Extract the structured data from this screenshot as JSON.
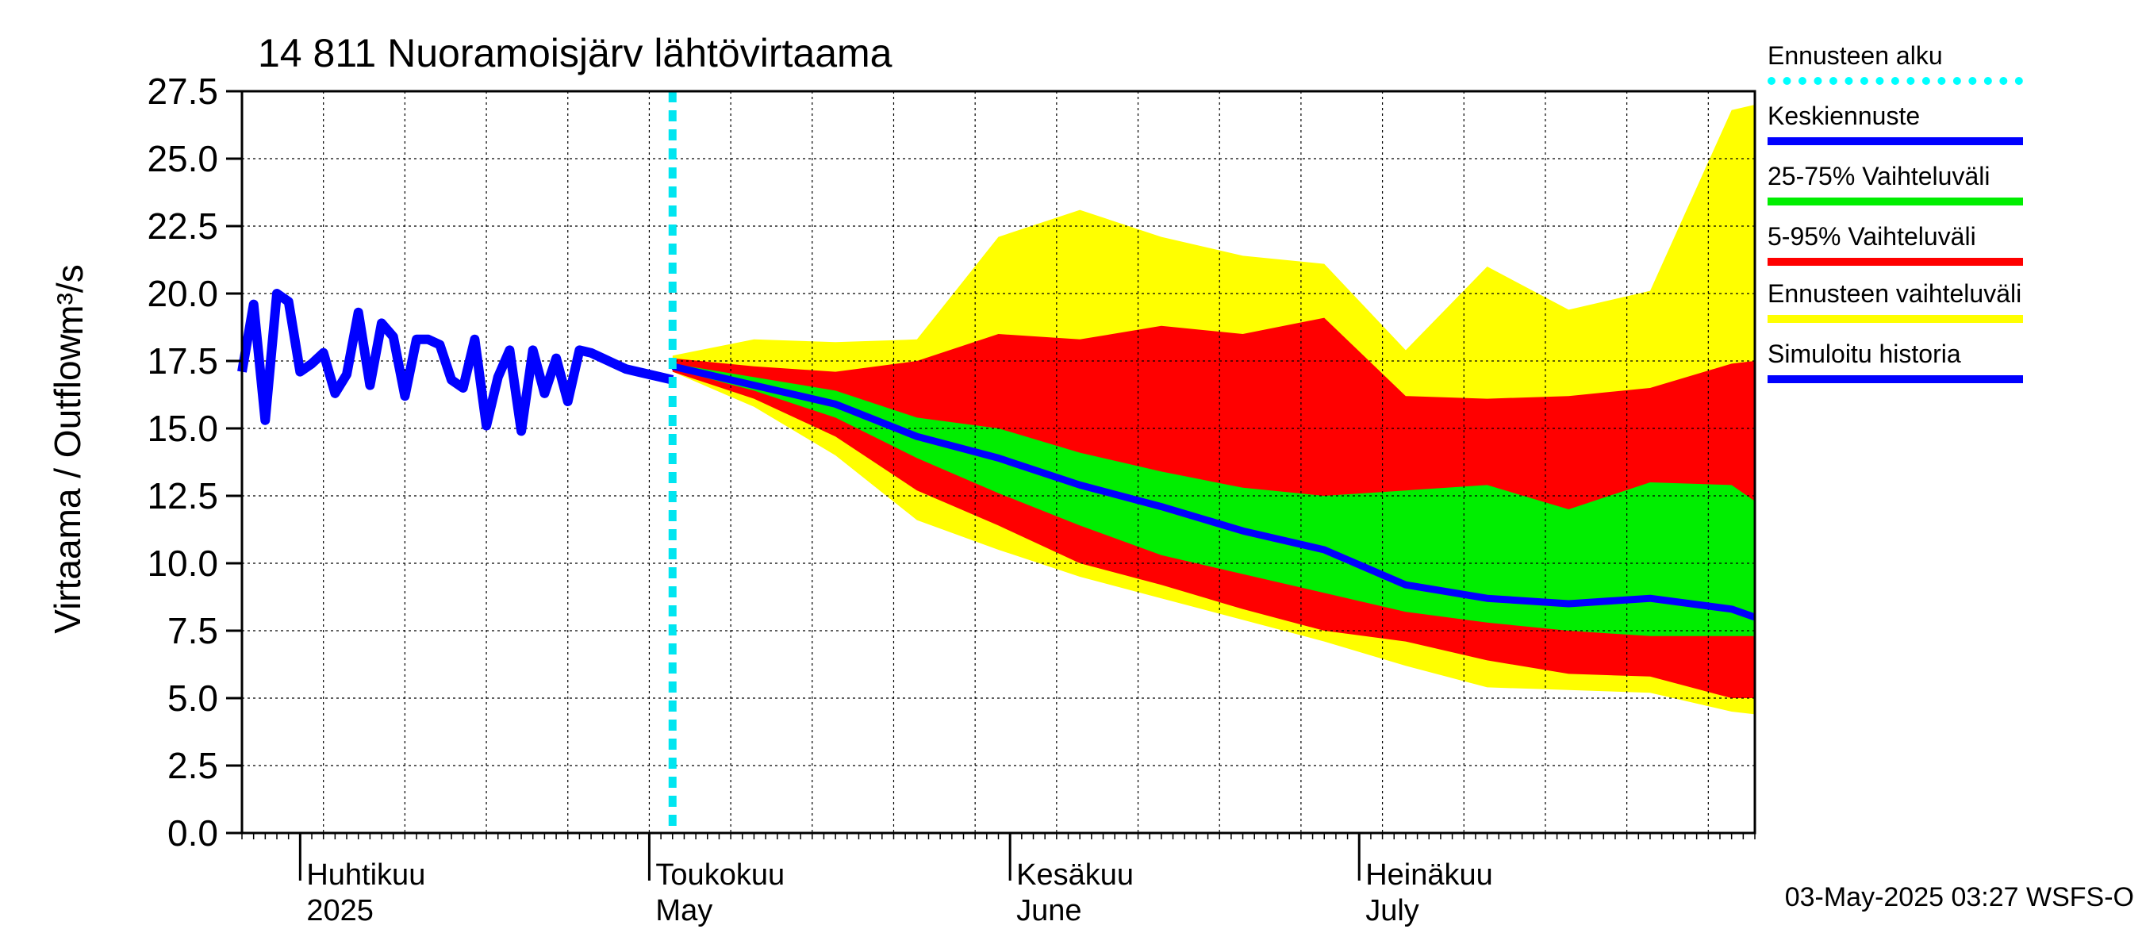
{
  "title": "14 811 Nuoramoisjärv lähtövirtaama",
  "ylabel": "Virtaama / Outflow",
  "unit": "m³/s",
  "footer": "03-May-2025 03:27 WSFS-O",
  "legend": [
    {
      "label": "Ennusteen alku",
      "color": "#00e5f0",
      "style": "dashed"
    },
    {
      "label": "Keskiennuste",
      "color": "#0000ff",
      "style": "solid"
    },
    {
      "label": "25-75% Vaihteluväli",
      "color": "#00ee00",
      "style": "solid"
    },
    {
      "label": "5-95% Vaihteluväli",
      "color": "#ff0000",
      "style": "solid"
    },
    {
      "label": "Ennusteen vaihteluväli",
      "color": "#ffff00",
      "style": "solid"
    },
    {
      "label": "Simuloitu historia",
      "color": "#0000ff",
      "style": "solid"
    }
  ],
  "chart_data": {
    "type": "area",
    "ylim": [
      0,
      27.5
    ],
    "yticks": [
      "0.0",
      "2.5",
      "5.0",
      "7.5",
      "10.0",
      "12.5",
      "15.0",
      "17.5",
      "20.0",
      "22.5",
      "25.0",
      "27.5"
    ],
    "xlim": [
      "2025-03-27",
      "2025-08-04"
    ],
    "grid": true,
    "month_labels": [
      {
        "date": "2025-04-01",
        "fi": "Huhtikuu",
        "en": "2025"
      },
      {
        "date": "2025-05-01",
        "fi": "Toukokuu",
        "en": "May"
      },
      {
        "date": "2025-06-01",
        "fi": "Kesäkuu",
        "en": "June"
      },
      {
        "date": "2025-07-01",
        "fi": "Heinäkuu",
        "en": "July"
      }
    ],
    "forecast_start": "2025-05-03",
    "history": {
      "name": "Simuloitu historia",
      "x": [
        "2025-03-27",
        "2025-03-28",
        "2025-03-29",
        "2025-03-30",
        "2025-03-31",
        "2025-04-01",
        "2025-04-02",
        "2025-04-03",
        "2025-04-04",
        "2025-04-05",
        "2025-04-06",
        "2025-04-07",
        "2025-04-08",
        "2025-04-09",
        "2025-04-10",
        "2025-04-11",
        "2025-04-12",
        "2025-04-13",
        "2025-04-14",
        "2025-04-15",
        "2025-04-16",
        "2025-04-17",
        "2025-04-18",
        "2025-04-19",
        "2025-04-20",
        "2025-04-21",
        "2025-04-22",
        "2025-04-23",
        "2025-04-24",
        "2025-04-25",
        "2025-04-26",
        "2025-04-27",
        "2025-04-28",
        "2025-04-29",
        "2025-04-30",
        "2025-05-01",
        "2025-05-02",
        "2025-05-03"
      ],
      "values": [
        17.1,
        19.6,
        15.3,
        20.0,
        19.7,
        17.1,
        17.4,
        17.8,
        16.3,
        17.0,
        19.3,
        16.6,
        18.9,
        18.4,
        16.2,
        18.3,
        18.3,
        18.1,
        16.8,
        16.5,
        18.3,
        15.1,
        16.9,
        17.9,
        14.9,
        17.9,
        16.3,
        17.6,
        16.0,
        17.9,
        17.8,
        17.6,
        17.4,
        17.2,
        17.1,
        17.0,
        16.9,
        16.8
      ]
    },
    "forecast": {
      "x": [
        "2025-05-03",
        "2025-05-10",
        "2025-05-17",
        "2025-05-24",
        "2025-05-31",
        "2025-06-07",
        "2025-06-14",
        "2025-06-21",
        "2025-06-28",
        "2025-07-05",
        "2025-07-12",
        "2025-07-19",
        "2025-07-26",
        "2025-08-02",
        "2025-08-04"
      ],
      "median": [
        17.3,
        16.6,
        15.9,
        14.7,
        13.9,
        12.9,
        12.1,
        11.2,
        10.5,
        9.2,
        8.7,
        8.5,
        8.7,
        8.3,
        8.0
      ],
      "p25": [
        17.2,
        16.4,
        15.4,
        13.9,
        12.6,
        11.4,
        10.3,
        9.6,
        8.9,
        8.2,
        7.8,
        7.5,
        7.3,
        7.3,
        7.3
      ],
      "p75": [
        17.4,
        16.9,
        16.4,
        15.4,
        15.0,
        14.1,
        13.4,
        12.8,
        12.5,
        12.7,
        12.9,
        12.0,
        13.0,
        12.9,
        12.3
      ],
      "p5": [
        17.1,
        16.1,
        14.7,
        12.7,
        11.4,
        10.0,
        9.2,
        8.3,
        7.5,
        7.1,
        6.4,
        5.9,
        5.8,
        5.0,
        5.0
      ],
      "p95": [
        17.6,
        17.3,
        17.1,
        17.5,
        18.5,
        18.3,
        18.8,
        18.5,
        19.1,
        16.2,
        16.1,
        16.2,
        16.5,
        17.4,
        17.5
      ],
      "min": [
        17.1,
        15.8,
        14.0,
        11.6,
        10.5,
        9.5,
        8.7,
        7.9,
        7.1,
        6.2,
        5.4,
        5.3,
        5.2,
        4.5,
        4.4
      ],
      "max": [
        17.7,
        18.3,
        18.2,
        18.3,
        22.1,
        23.1,
        22.1,
        21.4,
        21.1,
        17.9,
        21.0,
        19.4,
        20.1,
        26.8,
        27.0
      ]
    }
  }
}
